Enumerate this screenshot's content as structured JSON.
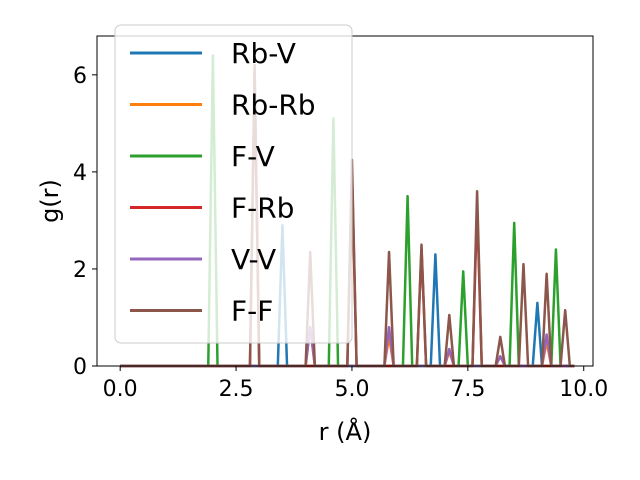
{
  "chart_data": {
    "type": "line",
    "title": "",
    "xlabel": "r (Å)",
    "ylabel": "g(r)",
    "xlim": [
      -0.5,
      10.2
    ],
    "ylim": [
      0,
      6.8
    ],
    "xticks": [
      0.0,
      2.5,
      5.0,
      7.5,
      10.0
    ],
    "xtick_labels": [
      "0.0",
      "2.5",
      "5.0",
      "7.5",
      "10.0"
    ],
    "yticks": [
      0,
      2,
      4,
      6
    ],
    "ytick_labels": [
      "0",
      "2",
      "4",
      "6"
    ],
    "grid": false,
    "legend_position": "top-left",
    "series": [
      {
        "name": "Rb-V",
        "color": "#1f77b4",
        "peaks": [
          {
            "x": 3.5,
            "y": 2.9
          },
          {
            "x": 6.8,
            "y": 2.3
          },
          {
            "x": 9.0,
            "y": 1.3
          }
        ]
      },
      {
        "name": "Rb-Rb",
        "color": "#ff7f0e",
        "peaks": [
          {
            "x": 4.1,
            "y": 0.8
          },
          {
            "x": 5.8,
            "y": 0.6
          },
          {
            "x": 7.1,
            "y": 0.3
          },
          {
            "x": 8.2,
            "y": 0.2
          },
          {
            "x": 9.2,
            "y": 0.5
          }
        ]
      },
      {
        "name": "F-V",
        "color": "#2ca02c",
        "peaks": [
          {
            "x": 2.0,
            "y": 6.4
          },
          {
            "x": 4.6,
            "y": 5.1
          },
          {
            "x": 6.2,
            "y": 3.5
          },
          {
            "x": 7.4,
            "y": 1.95
          },
          {
            "x": 8.5,
            "y": 2.95
          },
          {
            "x": 9.4,
            "y": 2.4
          }
        ]
      },
      {
        "name": "F-Rb",
        "color": "#d62728",
        "peaks": [
          {
            "x": 2.9,
            "y": 6.0
          },
          {
            "x": 5.0,
            "y": 4.0
          },
          {
            "x": 6.5,
            "y": 2.4
          },
          {
            "x": 7.7,
            "y": 3.3
          }
        ]
      },
      {
        "name": "V-V",
        "color": "#9467bd",
        "peaks": [
          {
            "x": 4.1,
            "y": 0.8
          },
          {
            "x": 5.8,
            "y": 0.8
          },
          {
            "x": 7.1,
            "y": 0.35
          },
          {
            "x": 8.2,
            "y": 0.2
          },
          {
            "x": 9.2,
            "y": 0.65
          }
        ]
      },
      {
        "name": "F-F",
        "color": "#8c564b",
        "peaks": [
          {
            "x": 2.9,
            "y": 6.2
          },
          {
            "x": 4.1,
            "y": 2.35
          },
          {
            "x": 5.0,
            "y": 4.25
          },
          {
            "x": 5.8,
            "y": 2.35
          },
          {
            "x": 6.5,
            "y": 2.5
          },
          {
            "x": 7.1,
            "y": 1.05
          },
          {
            "x": 7.7,
            "y": 3.6
          },
          {
            "x": 8.2,
            "y": 0.6
          },
          {
            "x": 8.7,
            "y": 2.1
          },
          {
            "x": 9.2,
            "y": 1.9
          },
          {
            "x": 9.6,
            "y": 1.15
          }
        ]
      }
    ]
  }
}
